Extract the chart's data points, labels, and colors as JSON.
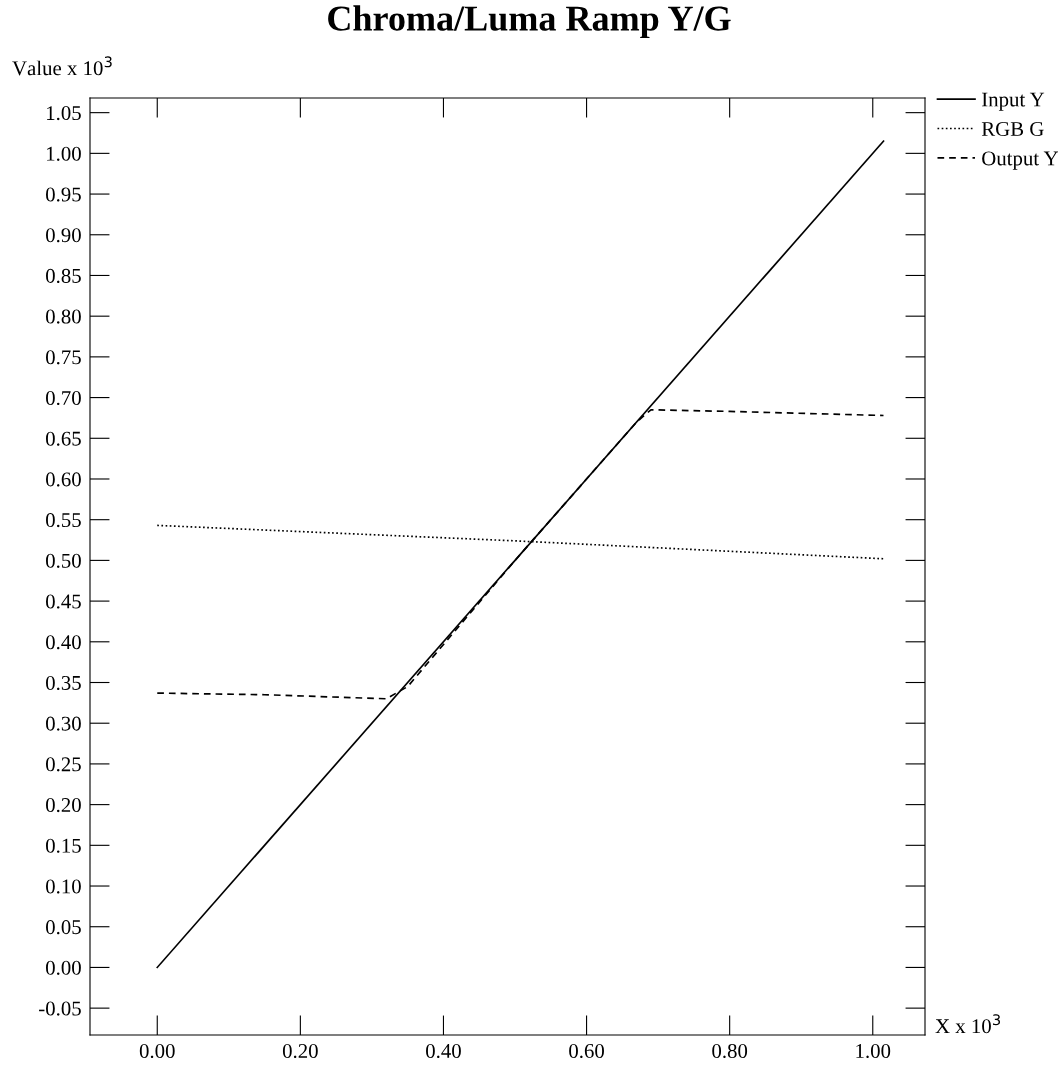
{
  "chart_data": {
    "type": "line",
    "title": "Chroma/Luma Ramp Y/G",
    "xlabel": "X x 10$^{3}$",
    "ylabel": "Value x 10$^{3}$",
    "xlim": [
      -0.094,
      1.073
    ],
    "ylim": [
      -0.083,
      1.068
    ],
    "xticks": [
      {
        "value": 0,
        "label": "0.00"
      },
      {
        "value": 0.2,
        "label": "0.20"
      },
      {
        "value": 0.4,
        "label": "0.40"
      },
      {
        "value": 0.6,
        "label": "0.60"
      },
      {
        "value": 0.8,
        "label": "0.80"
      },
      {
        "value": 1.0,
        "label": "1.00"
      }
    ],
    "yticks": [
      {
        "value": -0.05,
        "label": "-0.05"
      },
      {
        "value": 0,
        "label": "0.00"
      },
      {
        "value": 0.05,
        "label": "0.05"
      },
      {
        "value": 0.1,
        "label": "0.10"
      },
      {
        "value": 0.15,
        "label": "0.15"
      },
      {
        "value": 0.2,
        "label": "0.20"
      },
      {
        "value": 0.25,
        "label": "0.25"
      },
      {
        "value": 0.3,
        "label": "0.30"
      },
      {
        "value": 0.35,
        "label": "0.35"
      },
      {
        "value": 0.4,
        "label": "0.40"
      },
      {
        "value": 0.45,
        "label": "0.45"
      },
      {
        "value": 0.5,
        "label": "0.50"
      },
      {
        "value": 0.55,
        "label": "0.55"
      },
      {
        "value": 0.6,
        "label": "0.60"
      },
      {
        "value": 0.65,
        "label": "0.65"
      },
      {
        "value": 0.7,
        "label": "0.70"
      },
      {
        "value": 0.75,
        "label": "0.75"
      },
      {
        "value": 0.8,
        "label": "0.80"
      },
      {
        "value": 0.85,
        "label": "0.85"
      },
      {
        "value": 0.9,
        "label": "0.90"
      },
      {
        "value": 0.95,
        "label": "0.95"
      },
      {
        "value": 1.0,
        "label": "1.00"
      },
      {
        "value": 1.05,
        "label": "1.05"
      }
    ],
    "grid": false,
    "legend": "top right",
    "series": [
      {
        "name": "Input Y",
        "color": "#000000",
        "line_style": "solid",
        "x": [
          0,
          1.015
        ],
        "values": [
          0,
          1.015
        ]
      },
      {
        "name": "RGB G",
        "color": "#000000",
        "line_style": "dotted",
        "x": [
          0,
          0.5,
          1.015
        ],
        "values": [
          0.543,
          0.524,
          0.502
        ]
      },
      {
        "name": "Output Y",
        "color": "#000000",
        "line_style": "dashed",
        "x": [
          0,
          0.15,
          0.32,
          0.35,
          0.5,
          0.67,
          0.69,
          0.8,
          1.015
        ],
        "values": [
          0.337,
          0.335,
          0.33,
          0.345,
          0.5,
          0.67,
          0.685,
          0.683,
          0.678
        ]
      }
    ]
  }
}
